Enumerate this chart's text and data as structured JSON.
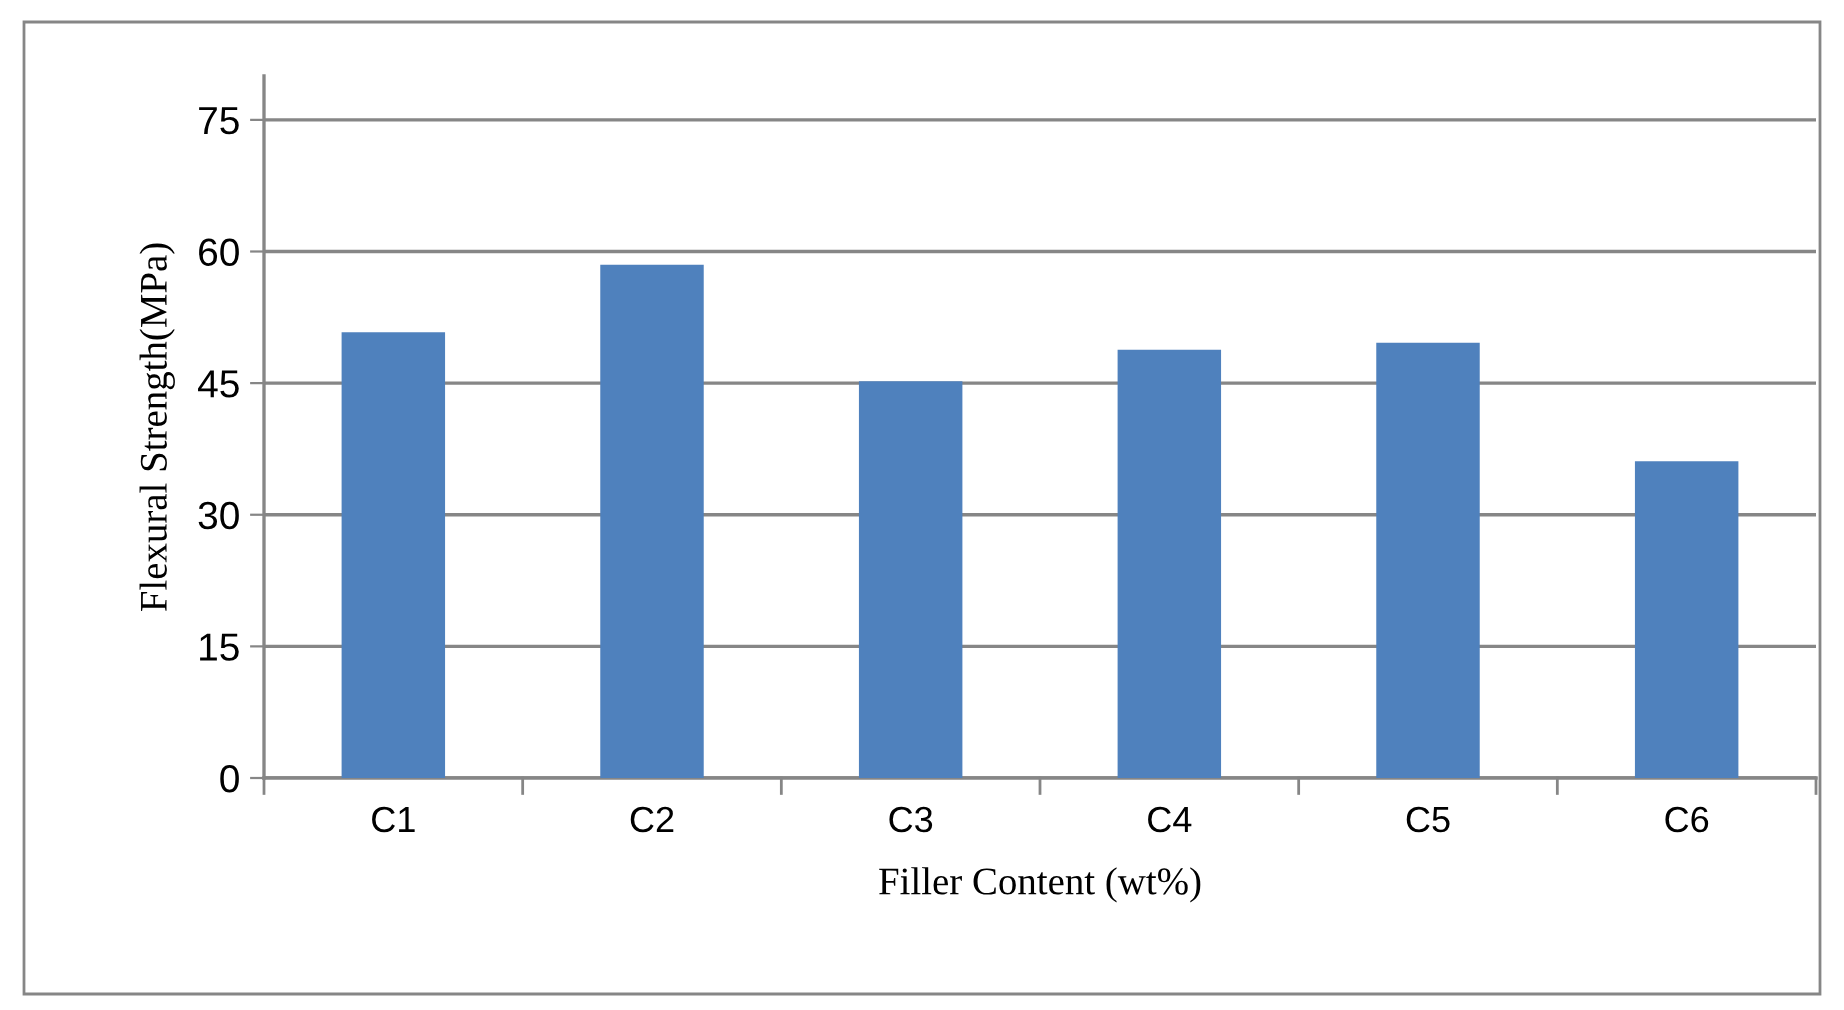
{
  "chart_data": {
    "type": "bar",
    "xlabel": "Filler Content (wt%)",
    "ylabel": "Flexural Strength(MPa)",
    "categories": [
      "C1",
      "C2",
      "C3",
      "C4",
      "C5",
      "C6"
    ],
    "values": [
      50.8,
      58.5,
      45.2,
      48.8,
      49.6,
      36.1
    ],
    "color": "#4f81bd",
    "ylim": [
      0,
      80
    ],
    "yticks": [
      0,
      15,
      30,
      45,
      60,
      75
    ],
    "grid": "y"
  }
}
